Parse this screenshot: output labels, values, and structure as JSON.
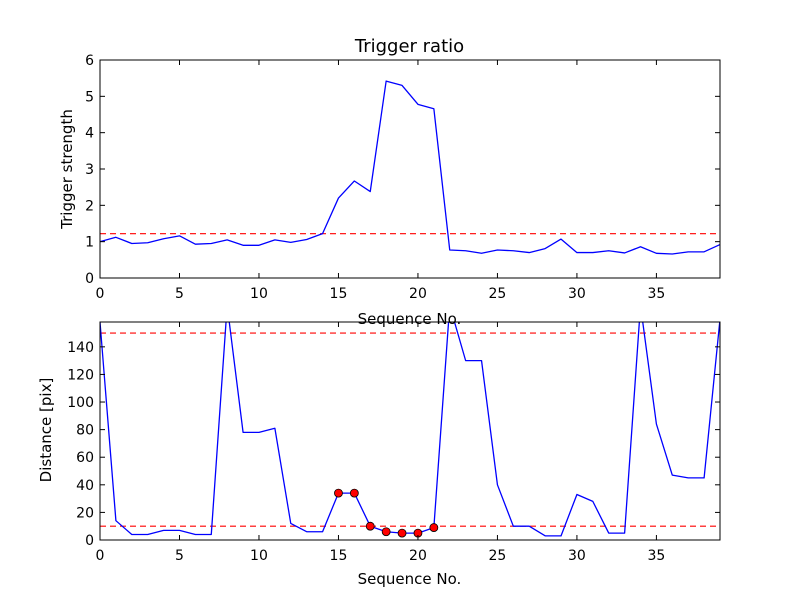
{
  "colors": {
    "line": "#0000ff",
    "threshold": "#ff0000",
    "marker_fill": "#ff0000",
    "marker_edge": "#000000",
    "axes": "#000000",
    "background": "#ffffff"
  },
  "chart_data": [
    {
      "type": "line",
      "title": "Trigger ratio",
      "xlabel": "Sequence No.",
      "ylabel": "Trigger strength",
      "xlim": [
        0,
        39
      ],
      "ylim": [
        0,
        6
      ],
      "xticks": [
        0,
        5,
        10,
        15,
        20,
        25,
        30,
        35
      ],
      "yticks": [
        0,
        1,
        2,
        3,
        4,
        5,
        6
      ],
      "grid": false,
      "series": [
        {
          "x": [
            0,
            1,
            2,
            3,
            4,
            5,
            6,
            7,
            8,
            9,
            10,
            11,
            12,
            13,
            14,
            15,
            16,
            17,
            18,
            19,
            20,
            21,
            22,
            23,
            24,
            25,
            26,
            27,
            28,
            29,
            30,
            31,
            32,
            33,
            34,
            35,
            36,
            37,
            38,
            39
          ],
          "y": [
            1.0,
            1.12,
            0.95,
            0.97,
            1.08,
            1.16,
            0.93,
            0.95,
            1.05,
            0.9,
            0.9,
            1.05,
            0.98,
            1.06,
            1.22,
            2.2,
            2.67,
            2.38,
            5.42,
            5.3,
            4.78,
            4.66,
            0.77,
            0.75,
            0.68,
            0.77,
            0.75,
            0.7,
            0.81,
            1.07,
            0.7,
            0.7,
            0.75,
            0.69,
            0.86,
            0.68,
            0.66,
            0.72,
            0.72,
            0.92
          ]
        }
      ],
      "threshold_lines": [
        1.22
      ]
    },
    {
      "type": "line",
      "title": "",
      "xlabel": "Sequence No.",
      "ylabel": "Distance [pix]",
      "xlim": [
        0,
        39
      ],
      "ylim": [
        0,
        158
      ],
      "xticks": [
        0,
        5,
        10,
        15,
        20,
        25,
        30,
        35
      ],
      "yticks": [
        0,
        20,
        40,
        60,
        80,
        100,
        120,
        140
      ],
      "grid": false,
      "series": [
        {
          "x": [
            0,
            1,
            2,
            3,
            4,
            5,
            6,
            7,
            8,
            9,
            10,
            11,
            12,
            13,
            14,
            15,
            16,
            17,
            18,
            19,
            20,
            21,
            22,
            23,
            24,
            25,
            26,
            27,
            28,
            29,
            30,
            31,
            32,
            33,
            34,
            35,
            36,
            37,
            38,
            39
          ],
          "y": [
            158,
            14,
            4,
            4,
            7,
            7,
            4,
            4,
            170,
            78,
            78,
            81,
            12,
            6,
            6,
            34,
            34,
            10,
            6,
            5,
            5,
            9,
            170,
            130,
            130,
            40,
            10,
            10,
            3,
            3,
            33,
            28,
            5,
            5,
            170,
            84,
            47,
            45,
            45,
            160
          ]
        }
      ],
      "markers": {
        "x": [
          15,
          16,
          17,
          18,
          19,
          20,
          21
        ],
        "y": [
          34,
          34,
          10,
          6,
          5,
          5,
          9
        ]
      },
      "threshold_lines": [
        150,
        10
      ]
    }
  ]
}
